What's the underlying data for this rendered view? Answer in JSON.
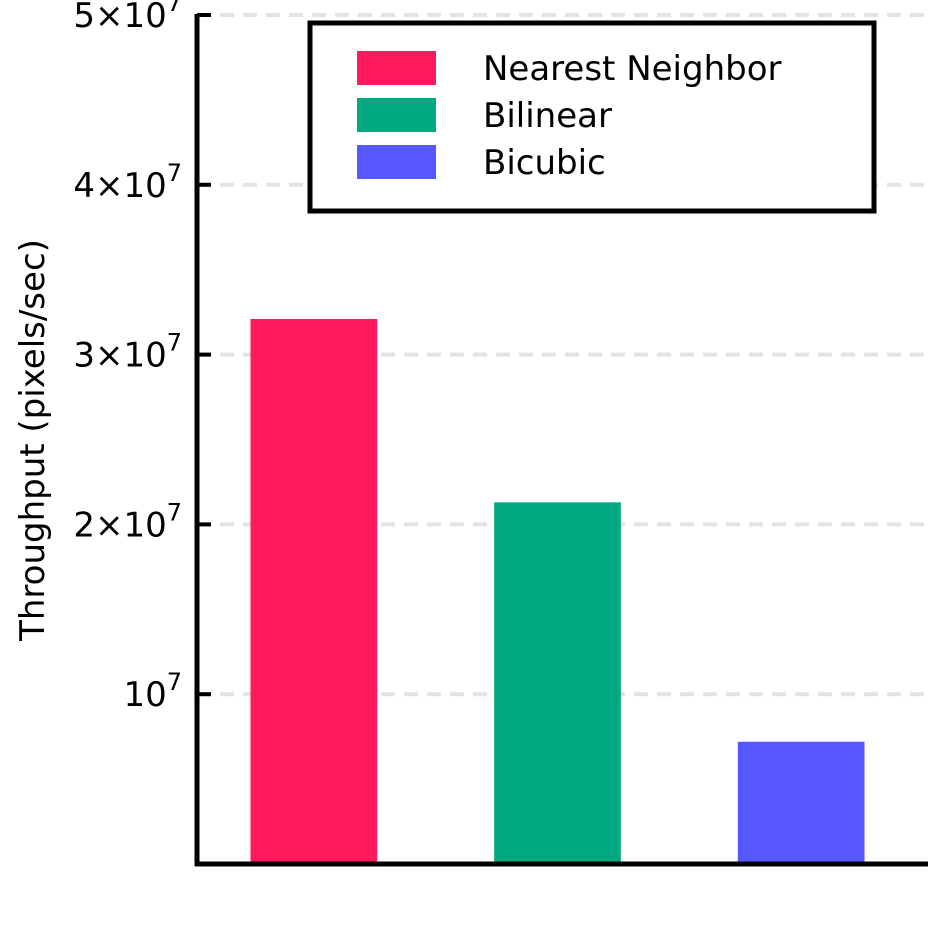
{
  "chart_data": {
    "type": "bar",
    "title": "",
    "xlabel": "",
    "ylabel": "Throughput (pixels/sec)",
    "categories": [
      "Nearest Neighbor",
      "Bilinear",
      "Bicubic"
    ],
    "series": [
      {
        "name": "Nearest Neighbor",
        "color": "#FF1A5E",
        "category": "Nearest Neighbor",
        "value": 32100000
      },
      {
        "name": "Bilinear",
        "color": "#00A97F",
        "category": "Bilinear",
        "value": 21300000
      },
      {
        "name": "Bicubic",
        "color": "#5757FF",
        "category": "Bicubic",
        "value": 7200000
      }
    ],
    "ylim": [
      0,
      50000000
    ],
    "yticks": [
      {
        "value": 10000000,
        "mantissa": "",
        "base": "10",
        "exponent": "7"
      },
      {
        "value": 20000000,
        "mantissa": "2×",
        "base": "10",
        "exponent": "7"
      },
      {
        "value": 30000000,
        "mantissa": "3×",
        "base": "10",
        "exponent": "7"
      },
      {
        "value": 40000000,
        "mantissa": "4×",
        "base": "10",
        "exponent": "7"
      },
      {
        "value": 50000000,
        "mantissa": "5×",
        "base": "10",
        "exponent": "7"
      }
    ],
    "grid": true,
    "grid_axis": "y",
    "legend_position": "top-right"
  }
}
